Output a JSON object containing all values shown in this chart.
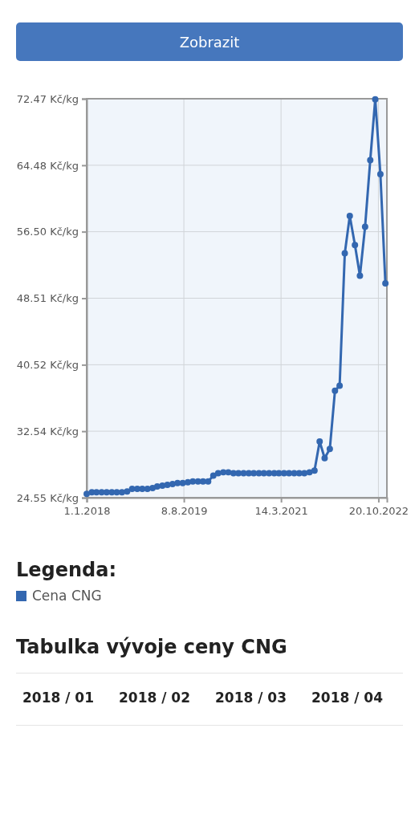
{
  "chart_data": {
    "type": "line",
    "x": [
      "2018-01",
      "2018-02",
      "2018-03",
      "2018-04",
      "2018-05",
      "2018-06",
      "2018-07",
      "2018-08",
      "2018-09",
      "2018-10",
      "2018-11",
      "2018-12",
      "2019-01",
      "2019-02",
      "2019-03",
      "2019-04",
      "2019-05",
      "2019-06",
      "2019-07",
      "2019-08",
      "2019-09",
      "2019-10",
      "2019-11",
      "2019-12",
      "2020-01",
      "2020-02",
      "2020-03",
      "2020-04",
      "2020-05",
      "2020-06",
      "2020-07",
      "2020-08",
      "2020-09",
      "2020-10",
      "2020-11",
      "2020-12",
      "2021-01",
      "2021-02",
      "2021-03",
      "2021-04",
      "2021-05",
      "2021-06",
      "2021-07",
      "2021-08",
      "2021-09",
      "2021-10",
      "2021-11",
      "2021-12",
      "2022-01",
      "2022-02",
      "2022-03",
      "2022-04",
      "2022-05",
      "2022-06",
      "2022-07",
      "2022-08",
      "2022-09",
      "2022-10",
      "2022-11",
      "2022-12"
    ],
    "series": [
      {
        "name": "Cena CNG",
        "color": "#3367b0",
        "values": [
          25.0,
          25.2,
          25.2,
          25.2,
          25.2,
          25.2,
          25.2,
          25.2,
          25.3,
          25.6,
          25.6,
          25.6,
          25.6,
          25.7,
          25.9,
          26.0,
          26.1,
          26.2,
          26.3,
          26.3,
          26.4,
          26.5,
          26.5,
          26.5,
          26.5,
          27.2,
          27.5,
          27.6,
          27.6,
          27.5,
          27.5,
          27.5,
          27.5,
          27.5,
          27.5,
          27.5,
          27.5,
          27.5,
          27.5,
          27.5,
          27.5,
          27.5,
          27.5,
          27.5,
          27.6,
          27.8,
          31.3,
          29.3,
          30.4,
          37.4,
          38.0,
          53.9,
          58.4,
          54.9,
          51.2,
          57.1,
          65.1,
          72.4,
          63.4,
          50.3
        ]
      }
    ],
    "xlim": [
      "2018-01-01",
      "2022-12-10"
    ],
    "xticks": [
      {
        "value": "2018-01-01",
        "label": "1.1.2018"
      },
      {
        "value": "2019-08-08",
        "label": "8.8.2019"
      },
      {
        "value": "2021-03-14",
        "label": "14.3.2021"
      },
      {
        "value": "2022-10-20",
        "label": "20.10.2022"
      }
    ],
    "ylim": [
      24.55,
      72.47
    ],
    "yticks": [
      {
        "value": 24.55,
        "label": "24.55 Kč/kg"
      },
      {
        "value": 32.54,
        "label": "32.54 Kč/kg"
      },
      {
        "value": 40.52,
        "label": "40.52 Kč/kg"
      },
      {
        "value": 48.51,
        "label": "48.51 Kč/kg"
      },
      {
        "value": 56.5,
        "label": "56.50 Kč/kg"
      },
      {
        "value": 64.48,
        "label": "64.48 Kč/kg"
      },
      {
        "value": 72.47,
        "label": "72.47 Kč/kg"
      }
    ],
    "grid": true,
    "marker": "circle",
    "line_style": "solid",
    "legend": "bottom",
    "legend_title": "Legenda:",
    "annotations": [
      "Zobrazit",
      "Tabulka vývoje ceny CNG",
      "2018 / 01",
      "2018 / 02",
      "2018 / 03",
      "2018 / 04"
    ]
  }
}
